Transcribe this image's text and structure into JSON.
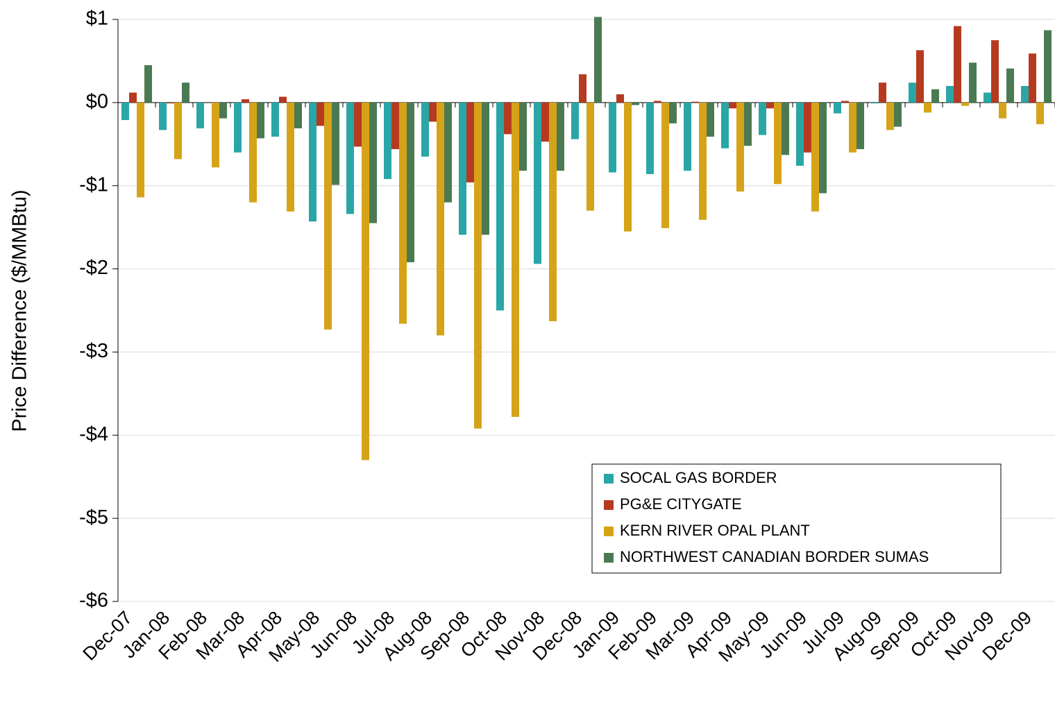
{
  "chart_data": {
    "type": "bar",
    "y_label": "Price Difference  ($/MMBtu)",
    "categories": [
      "Dec-07",
      "Jan-08",
      "Feb-08",
      "Mar-08",
      "Apr-08",
      "May-08",
      "Jun-08",
      "Jul-08",
      "Aug-08",
      "Sep-08",
      "Oct-08",
      "Nov-08",
      "Dec-08",
      "Jan-09",
      "Feb-09",
      "Mar-09",
      "Apr-09",
      "May-09",
      "Jun-09",
      "Jul-09",
      "Aug-09",
      "Sep-09",
      "Oct-09",
      "Nov-09",
      "Dec-09"
    ],
    "series": [
      {
        "name": "SOCAL GAS BORDER",
        "color": "#2aa6a6",
        "values": [
          -0.21,
          -0.33,
          -0.31,
          -0.6,
          -0.41,
          -1.43,
          -1.34,
          -0.92,
          -0.65,
          -1.59,
          -2.5,
          -1.94,
          -0.44,
          -0.84,
          -0.86,
          -0.82,
          -0.55,
          -0.39,
          -0.76,
          -0.13,
          -0.01,
          0.24,
          0.2,
          0.12,
          0.2
        ]
      },
      {
        "name": "PG&E CITYGATE",
        "color": "#b63a20",
        "values": [
          0.12,
          -0.01,
          0,
          0.04,
          0.07,
          -0.28,
          -0.53,
          -0.56,
          -0.23,
          -0.96,
          -0.38,
          -0.47,
          0.34,
          0.1,
          0.02,
          0.01,
          -0.07,
          -0.07,
          -0.6,
          0.02,
          0.24,
          0.63,
          0.92,
          0.75,
          0.59
        ]
      },
      {
        "name": "KERN RIVER OPAL PLANT",
        "color": "#d6a318",
        "values": [
          -1.14,
          -0.68,
          -0.78,
          -1.2,
          -1.31,
          -2.73,
          -4.3,
          -2.66,
          -2.8,
          -3.92,
          -3.78,
          -2.63,
          -1.3,
          -1.55,
          -1.51,
          -1.41,
          -1.07,
          -0.98,
          -1.31,
          -0.6,
          -0.33,
          -0.12,
          -0.04,
          -0.19,
          -0.26
        ]
      },
      {
        "name": "NORTHWEST CANADIAN BORDER SUMAS",
        "color": "#4b7a52",
        "values": [
          0.45,
          0.24,
          -0.19,
          -0.43,
          -0.31,
          -0.99,
          -1.45,
          -1.92,
          -1.2,
          -1.59,
          -0.82,
          -0.82,
          1.03,
          -0.03,
          -0.25,
          -0.41,
          -0.52,
          -0.63,
          -1.09,
          -0.56,
          -0.29,
          0.16,
          0.48,
          0.41,
          0.87
        ]
      }
    ],
    "ylim": [
      -6,
      1
    ],
    "yticks": [
      {
        "value": -6,
        "label": "-$6"
      },
      {
        "value": -5,
        "label": "-$5"
      },
      {
        "value": -4,
        "label": "-$4"
      },
      {
        "value": -3,
        "label": "-$3"
      },
      {
        "value": -2,
        "label": "-$2"
      },
      {
        "value": -1,
        "label": "-$1"
      },
      {
        "value": 0,
        "label": "$0"
      },
      {
        "value": 1,
        "label": "$1"
      }
    ],
    "grid": true,
    "legend": "lower-right"
  }
}
